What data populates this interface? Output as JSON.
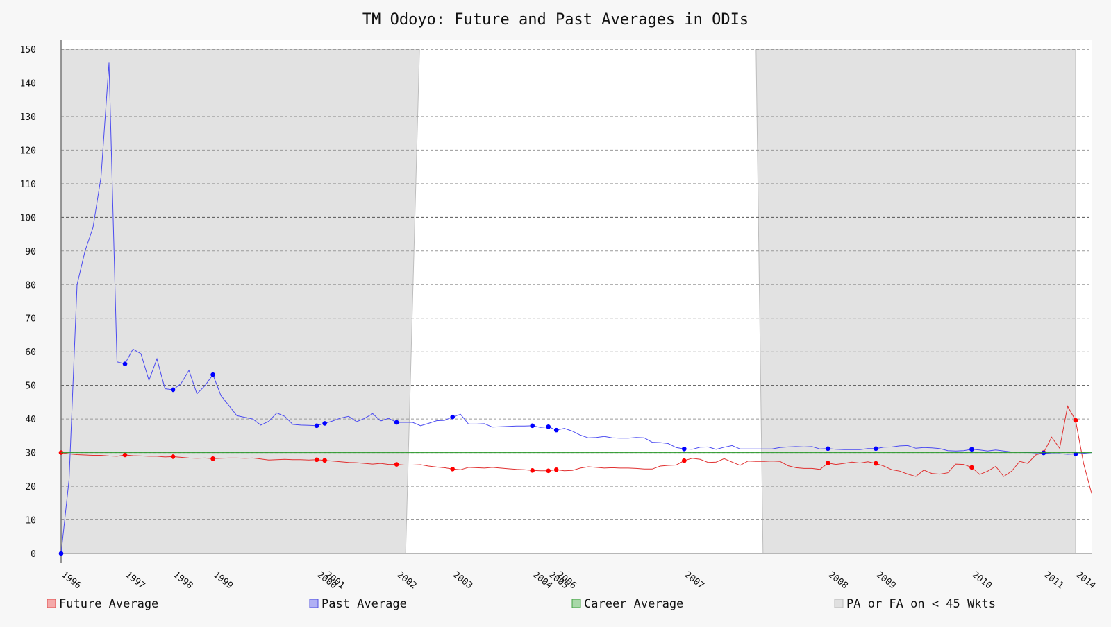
{
  "chart_data": {
    "type": "line",
    "title": "TM Odoyo: Future and Past Averages in ODIs",
    "xlabel": "",
    "ylabel": "",
    "ylim": [
      0,
      150
    ],
    "yticks": [
      0,
      10,
      20,
      30,
      40,
      50,
      60,
      70,
      80,
      90,
      100,
      110,
      120,
      130,
      140,
      150
    ],
    "grid": true,
    "legend_position": "bottom",
    "career_average": 30,
    "x_index_range": [
      0,
      129
    ],
    "year_ticks": [
      {
        "label": "1996",
        "index": 0
      },
      {
        "label": "1997",
        "index": 8
      },
      {
        "label": "1998",
        "index": 14
      },
      {
        "label": "1999",
        "index": 19
      },
      {
        "label": "2000",
        "index": 32
      },
      {
        "label": "2001",
        "index": 33
      },
      {
        "label": "2002",
        "index": 42
      },
      {
        "label": "2003",
        "index": 49
      },
      {
        "label": "2004",
        "index": 59
      },
      {
        "label": "2005",
        "index": 61
      },
      {
        "label": "2006",
        "index": 62
      },
      {
        "label": "2007",
        "index": 78
      },
      {
        "label": "2008",
        "index": 96
      },
      {
        "label": "2009",
        "index": 102
      },
      {
        "label": "2010",
        "index": 114
      },
      {
        "label": "2011",
        "index": 123
      },
      {
        "label": "2014",
        "index": 127
      }
    ],
    "shaded_regions": [
      {
        "from": 0,
        "to": 44
      },
      {
        "from": 87,
        "to": 127
      }
    ],
    "series": [
      {
        "name": "Future Average",
        "color": "#e03030",
        "marker_color": "#ff0000",
        "values": [
          30.0,
          29.6,
          29.4,
          29.3,
          29.2,
          29.2,
          29.0,
          28.9,
          29.3,
          29.1,
          29.0,
          28.9,
          28.9,
          28.7,
          28.8,
          28.6,
          28.4,
          28.3,
          28.4,
          28.2,
          28.3,
          28.4,
          28.4,
          28.3,
          28.4,
          28.1,
          27.8,
          27.9,
          28.0,
          27.9,
          27.9,
          27.8,
          27.9,
          27.7,
          27.5,
          27.3,
          27.1,
          27.0,
          26.8,
          26.6,
          26.8,
          26.5,
          26.5,
          26.3,
          26.3,
          26.4,
          26.0,
          25.7,
          25.5,
          25.1,
          24.9,
          25.6,
          25.5,
          25.4,
          25.6,
          25.4,
          25.2,
          25.0,
          24.9,
          24.7,
          24.6,
          24.6,
          24.9,
          24.6,
          24.7,
          25.4,
          25.8,
          25.6,
          25.4,
          25.5,
          25.4,
          25.4,
          25.3,
          25.1,
          25.1,
          26.0,
          26.2,
          26.3,
          27.6,
          28.3,
          28.0,
          27.1,
          27.2,
          28.2,
          27.2,
          26.2,
          27.5,
          27.4,
          27.4,
          27.5,
          27.4,
          26.1,
          25.5,
          25.3,
          25.3,
          25.0,
          26.9,
          26.5,
          26.8,
          27.2,
          26.9,
          27.3,
          26.8,
          26.0,
          24.9,
          24.5,
          23.6,
          22.9,
          24.8,
          23.8,
          23.6,
          24.0,
          26.6,
          26.5,
          25.6,
          23.5,
          24.5,
          25.9,
          22.9,
          24.5,
          27.4,
          26.8,
          29.3,
          30.0,
          34.6,
          31.3,
          43.8,
          39.6,
          26.8,
          17.9
        ],
        "markers": [
          0,
          8,
          14,
          19,
          32,
          33,
          42,
          49,
          59,
          61,
          62,
          78,
          96,
          102,
          114,
          123,
          127
        ]
      },
      {
        "name": "Past Average",
        "color": "#4b4bf0",
        "marker_color": "#0000ff",
        "values": [
          0,
          22,
          80,
          90,
          97,
          112,
          146,
          57,
          56.4,
          60.8,
          59.4,
          51.5,
          57.9,
          49,
          48.7,
          50.5,
          54.5,
          47.5,
          49.9,
          53.2,
          47,
          44,
          41,
          40.5,
          40,
          38.2,
          39.3,
          41.8,
          40.8,
          38.4,
          38.2,
          38.1,
          38,
          38.7,
          39.4,
          40.3,
          40.8,
          39.2,
          40.2,
          41.6,
          39.4,
          40.2,
          39,
          39,
          39,
          38,
          38.7,
          39.5,
          39.6,
          40.6,
          41.4,
          38.5,
          38.5,
          38.6,
          37.6,
          37.7,
          37.8,
          37.9,
          37.9,
          38,
          37.5,
          37.7,
          36.7,
          37.2,
          36.4,
          35.2,
          34.4,
          34.5,
          34.8,
          34.4,
          34.3,
          34.3,
          34.5,
          34.4,
          33.1,
          33,
          32.7,
          31.5,
          31.1,
          31,
          31.6,
          31.7,
          31,
          31.6,
          32.1,
          31.1,
          31.1,
          31.1,
          31.1,
          31.1,
          31.5,
          31.7,
          31.8,
          31.7,
          31.8,
          31.1,
          31.2,
          31,
          30.9,
          30.9,
          30.9,
          31.2,
          31.2,
          31.6,
          31.7,
          32,
          32.1,
          31.3,
          31.5,
          31.4,
          31.2,
          30.6,
          30.5,
          30.6,
          31,
          30.8,
          30.5,
          30.8,
          30.5,
          30.2,
          30.2,
          30.1,
          29.9,
          29.9,
          29.7,
          29.7,
          29.5,
          29.6,
          29.8,
          30
        ],
        "markers": [
          0,
          8,
          14,
          19,
          32,
          33,
          42,
          49,
          59,
          61,
          62,
          78,
          96,
          102,
          114,
          123,
          127
        ]
      },
      {
        "name": "Career Average",
        "color": "#2a9a2a",
        "values": [
          30,
          30
        ]
      }
    ],
    "legend": [
      {
        "label": "Future Average",
        "swatch_fill": "#f4a9a9",
        "swatch_stroke": "#e05050"
      },
      {
        "label": "Past Average",
        "swatch_fill": "#b0b0f4",
        "swatch_stroke": "#5050e0"
      },
      {
        "label": "Career Average",
        "swatch_fill": "#a8d8a8",
        "swatch_stroke": "#40a040"
      },
      {
        "label": "PA or FA on < 45 Wkts",
        "swatch_fill": "#e0e0e0",
        "swatch_stroke": "#b8b8b8"
      }
    ]
  }
}
